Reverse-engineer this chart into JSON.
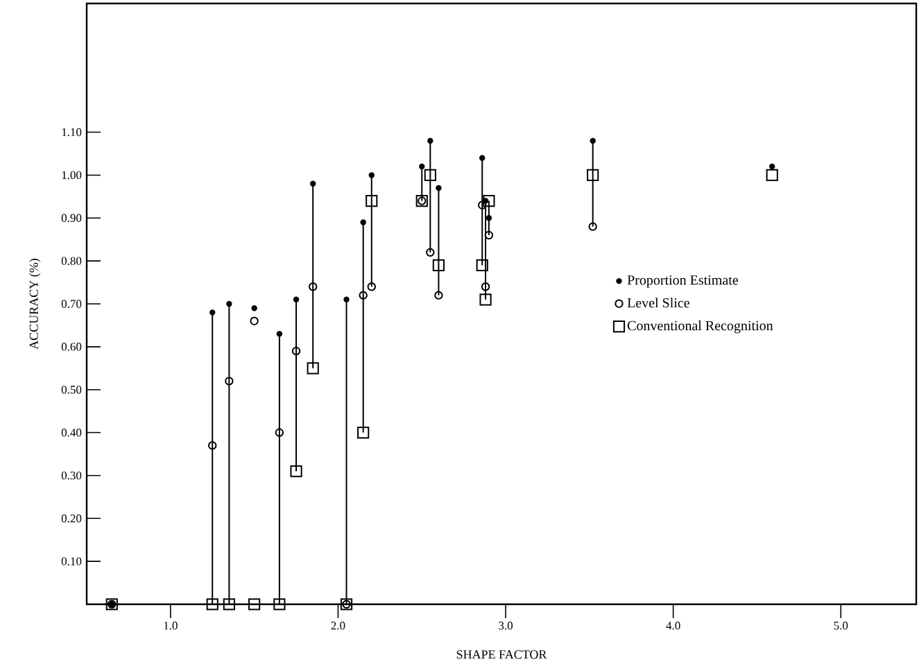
{
  "chart_data": {
    "type": "scatter",
    "xlabel": "SHAPE FACTOR",
    "ylabel": "ACCURACY (%)",
    "x": [
      0.65,
      1.25,
      1.35,
      1.5,
      1.65,
      1.75,
      1.85,
      2.05,
      2.15,
      2.2,
      2.5,
      2.55,
      2.6,
      2.86,
      2.88,
      2.9,
      3.52,
      4.59
    ],
    "series": [
      {
        "name": "Proportion Estimate",
        "color": "#000000",
        "marker": "circle",
        "values": [
          0,
          0.68,
          0.7,
          0.69,
          0.63,
          0.71,
          0.98,
          0.71,
          0.89,
          1.0,
          1.02,
          1.08,
          0.97,
          1.04,
          0.94,
          0.9,
          1.08,
          1.02
        ],
        "errors": [
          null,
          [
            0,
            0.68
          ],
          [
            0,
            0.7
          ],
          null,
          [
            0,
            0.63
          ],
          [
            0.31,
            0.71
          ],
          [
            0.55,
            0.98
          ],
          [
            0,
            0.71
          ],
          [
            0.4,
            0.89
          ],
          [
            0.74,
            1.0
          ],
          [
            0.94,
            1.02
          ],
          [
            0.82,
            1.08
          ],
          [
            0.72,
            0.97
          ],
          [
            0.79,
            1.04
          ],
          [
            0.71,
            0.94
          ],
          [
            0.86,
            0.94
          ],
          [
            0.88,
            1.08
          ],
          null
        ]
      },
      {
        "name": "Level Slice",
        "color": "#000000",
        "marker": "circle",
        "values": [
          0,
          0.37,
          0.52,
          0.66,
          0.4,
          0.59,
          0.74,
          0,
          0.72,
          0.74,
          0.94,
          0.82,
          0.72,
          0.93,
          0.74,
          0.86,
          0.88,
          null
        ]
      },
      {
        "name": "Conventional Recognition",
        "color": "#000000",
        "marker": "square",
        "values": [
          0,
          0,
          0,
          0,
          0,
          0.31,
          0.55,
          0,
          0.4,
          0.94,
          0.94,
          1.0,
          0.79,
          0.79,
          0.71,
          0.94,
          1.0,
          1.0
        ]
      }
    ],
    "xlim": [
      0.5,
      5.45
    ],
    "ylim": [
      0,
      1.4
    ],
    "xticks": [
      {
        "value": 1,
        "label": "1.0"
      },
      {
        "value": 2,
        "label": "2.0"
      },
      {
        "value": 3,
        "label": "3.0"
      },
      {
        "value": 4,
        "label": "4.0"
      },
      {
        "value": 5,
        "label": "5.0"
      }
    ],
    "yticks": [
      {
        "value": 0.1,
        "label": "0.10"
      },
      {
        "value": 0.2,
        "label": "0.20"
      },
      {
        "value": 0.3,
        "label": "0.30"
      },
      {
        "value": 0.4,
        "label": "0.40"
      },
      {
        "value": 0.5,
        "label": "0.50"
      },
      {
        "value": 0.6,
        "label": "0.60"
      },
      {
        "value": 0.7,
        "label": "0.70"
      },
      {
        "value": 0.8,
        "label": "0.80"
      },
      {
        "value": 0.9,
        "label": "0.90"
      },
      {
        "value": 1.0,
        "label": "1.00"
      },
      {
        "value": 1.1,
        "label": "1.10"
      }
    ],
    "legend": "right",
    "grid": false
  }
}
